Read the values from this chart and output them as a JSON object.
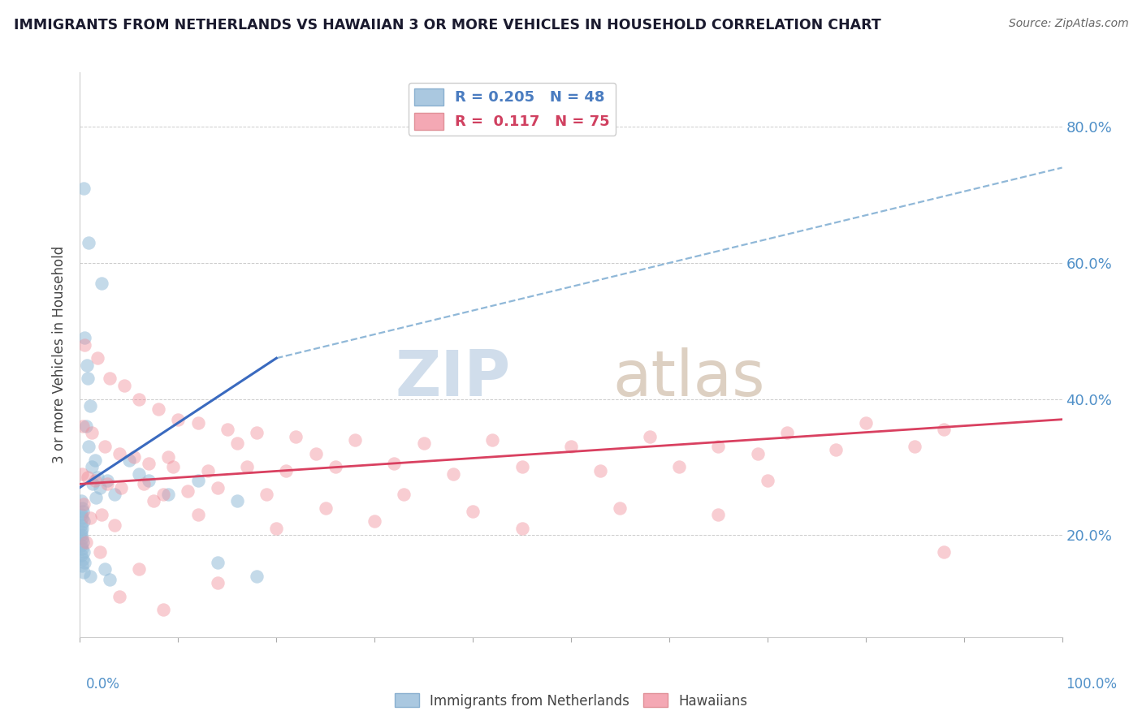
{
  "title": "IMMIGRANTS FROM NETHERLANDS VS HAWAIIAN 3 OR MORE VEHICLES IN HOUSEHOLD CORRELATION CHART",
  "source": "Source: ZipAtlas.com",
  "ylabel": "3 or more Vehicles in Household",
  "legend_labels": [
    "Immigrants from Netherlands",
    "Hawaiians"
  ],
  "blue_scatter_color": "#94bcd8",
  "pink_scatter_color": "#f0909c",
  "blue_line_color": "#3a6abf",
  "pink_line_color": "#d94060",
  "dashed_line_color": "#90b8d8",
  "watermark_zip_color": "#c8d8e8",
  "watermark_atlas_color": "#d8c8b8",
  "blue_legend_patch": "#aac8e0",
  "pink_legend_patch": "#f4a8b4",
  "blue_text_color": "#4a7cc0",
  "pink_text_color": "#d04060",
  "right_axis_color": "#5090c8",
  "title_color": "#1a1a2e",
  "background_color": "#ffffff",
  "grid_color": "#cccccc",
  "blue_scatter": [
    [
      0.4,
      71.0
    ],
    [
      0.9,
      63.0
    ],
    [
      2.2,
      57.0
    ],
    [
      0.5,
      49.0
    ],
    [
      0.7,
      45.0
    ],
    [
      0.8,
      43.0
    ],
    [
      1.0,
      39.0
    ],
    [
      0.6,
      36.0
    ],
    [
      0.9,
      33.0
    ],
    [
      1.5,
      31.0
    ],
    [
      1.2,
      30.0
    ],
    [
      1.8,
      28.5
    ],
    [
      2.8,
      28.0
    ],
    [
      1.3,
      27.5
    ],
    [
      2.0,
      27.0
    ],
    [
      3.5,
      26.0
    ],
    [
      1.6,
      25.5
    ],
    [
      0.1,
      25.0
    ],
    [
      0.2,
      24.0
    ],
    [
      0.3,
      23.5
    ],
    [
      0.15,
      23.0
    ],
    [
      0.25,
      22.5
    ],
    [
      0.35,
      22.0
    ],
    [
      0.1,
      21.5
    ],
    [
      0.2,
      21.0
    ],
    [
      0.1,
      20.5
    ],
    [
      0.15,
      20.0
    ],
    [
      0.2,
      19.5
    ],
    [
      0.3,
      19.0
    ],
    [
      0.1,
      18.5
    ],
    [
      0.2,
      18.0
    ],
    [
      0.4,
      17.5
    ],
    [
      0.1,
      17.0
    ],
    [
      0.3,
      16.5
    ],
    [
      0.5,
      16.0
    ],
    [
      0.2,
      15.5
    ],
    [
      2.5,
      15.0
    ],
    [
      0.4,
      14.5
    ],
    [
      1.0,
      14.0
    ],
    [
      3.0,
      13.5
    ],
    [
      5.0,
      31.0
    ],
    [
      6.0,
      29.0
    ],
    [
      7.0,
      28.0
    ],
    [
      9.0,
      26.0
    ],
    [
      12.0,
      28.0
    ],
    [
      16.0,
      25.0
    ],
    [
      18.0,
      14.0
    ],
    [
      14.0,
      16.0
    ]
  ],
  "pink_scatter": [
    [
      0.5,
      48.0
    ],
    [
      1.8,
      46.0
    ],
    [
      3.0,
      43.0
    ],
    [
      4.5,
      42.0
    ],
    [
      6.0,
      40.0
    ],
    [
      8.0,
      38.5
    ],
    [
      10.0,
      37.0
    ],
    [
      12.0,
      36.5
    ],
    [
      15.0,
      35.5
    ],
    [
      18.0,
      35.0
    ],
    [
      22.0,
      34.5
    ],
    [
      28.0,
      34.0
    ],
    [
      35.0,
      33.5
    ],
    [
      42.0,
      34.0
    ],
    [
      50.0,
      33.0
    ],
    [
      58.0,
      34.5
    ],
    [
      65.0,
      33.0
    ],
    [
      72.0,
      35.0
    ],
    [
      80.0,
      36.5
    ],
    [
      88.0,
      35.5
    ],
    [
      0.3,
      36.0
    ],
    [
      1.2,
      35.0
    ],
    [
      2.5,
      33.0
    ],
    [
      4.0,
      32.0
    ],
    [
      5.5,
      31.5
    ],
    [
      7.0,
      30.5
    ],
    [
      9.5,
      30.0
    ],
    [
      13.0,
      29.5
    ],
    [
      17.0,
      30.0
    ],
    [
      21.0,
      29.5
    ],
    [
      26.0,
      30.0
    ],
    [
      32.0,
      30.5
    ],
    [
      38.0,
      29.0
    ],
    [
      45.0,
      30.0
    ],
    [
      53.0,
      29.5
    ],
    [
      61.0,
      30.0
    ],
    [
      69.0,
      32.0
    ],
    [
      77.0,
      32.5
    ],
    [
      85.0,
      33.0
    ],
    [
      0.2,
      29.0
    ],
    [
      0.8,
      28.5
    ],
    [
      1.5,
      28.0
    ],
    [
      2.8,
      27.5
    ],
    [
      4.2,
      27.0
    ],
    [
      6.5,
      27.5
    ],
    [
      8.5,
      26.0
    ],
    [
      11.0,
      26.5
    ],
    [
      14.0,
      27.0
    ],
    [
      19.0,
      26.0
    ],
    [
      25.0,
      24.0
    ],
    [
      33.0,
      26.0
    ],
    [
      1.0,
      22.5
    ],
    [
      3.5,
      21.5
    ],
    [
      7.5,
      25.0
    ],
    [
      12.0,
      23.0
    ],
    [
      20.0,
      21.0
    ],
    [
      30.0,
      22.0
    ],
    [
      40.0,
      23.5
    ],
    [
      0.4,
      24.5
    ],
    [
      2.2,
      23.0
    ],
    [
      9.0,
      31.5
    ],
    [
      16.0,
      33.5
    ],
    [
      24.0,
      32.0
    ],
    [
      0.6,
      19.0
    ],
    [
      2.0,
      17.5
    ],
    [
      6.0,
      15.0
    ],
    [
      14.0,
      13.0
    ],
    [
      4.0,
      11.0
    ],
    [
      8.5,
      9.0
    ],
    [
      88.0,
      17.5
    ],
    [
      65.0,
      23.0
    ],
    [
      45.0,
      21.0
    ],
    [
      55.0,
      24.0
    ],
    [
      70.0,
      28.0
    ]
  ],
  "blue_line": {
    "x0": 0,
    "y0": 27.0,
    "x1": 20,
    "y1": 46.0
  },
  "dashed_line": {
    "x0": 20,
    "y0": 46.0,
    "x1": 100,
    "y2": 74.0
  },
  "pink_line": {
    "x0": 0,
    "y0": 27.5,
    "x1": 100,
    "y1": 37.0
  },
  "xlim": [
    0,
    100
  ],
  "ylim": [
    5,
    88
  ],
  "y_tick_positions": [
    20,
    40,
    60,
    80
  ],
  "y_tick_labels": [
    "20.0%",
    "40.0%",
    "60.0%",
    "80.0%"
  ]
}
